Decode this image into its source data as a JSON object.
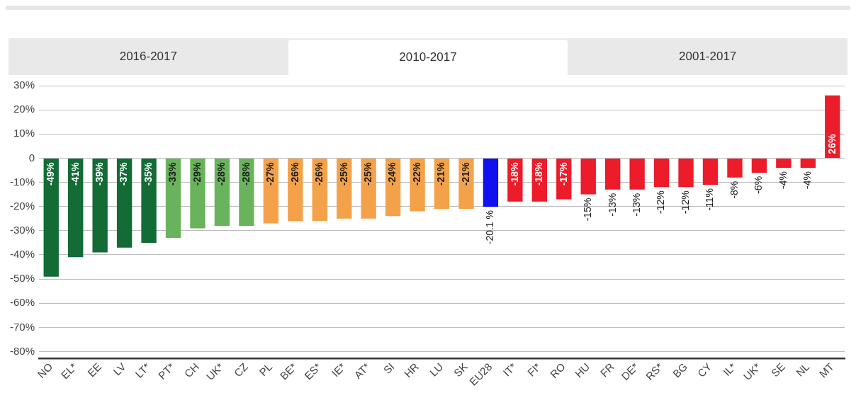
{
  "chart_data": {
    "type": "bar",
    "annotations": [
      "2016-2017",
      "2010-2017",
      "2001-2017"
    ],
    "categories": [
      "NO",
      "EL*",
      "EE",
      "LV",
      "LT*",
      "PT*",
      "CH",
      "UK*",
      "CZ",
      "PL",
      "BE*",
      "ES*",
      "IE*",
      "AT*",
      "SI",
      "HR",
      "LU",
      "SK",
      "EU28",
      "IT*",
      "FI*",
      "RO",
      "HU",
      "FR",
      "DE*",
      "RS*",
      "BG",
      "CY",
      "IL*",
      "UK*",
      "SE",
      "NL",
      "MT"
    ],
    "values": [
      -49,
      -41,
      -39,
      -37,
      -35,
      -33,
      -29,
      -28,
      -28,
      -27,
      -26,
      -26,
      -25,
      -25,
      -24,
      -22,
      -21,
      -21,
      -20.1,
      -18,
      -18,
      -17,
      -15,
      -13,
      -13,
      -12,
      -12,
      -11,
      -8,
      -6,
      -4,
      -4,
      26
    ],
    "value_labels": [
      "-49%",
      "-41%",
      "-39%",
      "-37%",
      "-35%",
      "-33%",
      "-29%",
      "-28%",
      "-28%",
      "-27%",
      "-26%",
      "-26%",
      "-25%",
      "-25%",
      "-24%",
      "-22%",
      "-21%",
      "-21%",
      "-20.1 %",
      "-18%",
      "-18%",
      "-17%",
      "-15%",
      "-13%",
      "-13%",
      "-12%",
      "-12%",
      "-11%",
      "-8%",
      "-6%",
      "-4%",
      "-4%",
      "26%"
    ],
    "colors": [
      "#136b36",
      "#136b36",
      "#136b36",
      "#136b36",
      "#136b36",
      "#6ab35d",
      "#6ab35d",
      "#6ab35d",
      "#6ab35d",
      "#f4a24a",
      "#f4a24a",
      "#f4a24a",
      "#f4a24a",
      "#f4a24a",
      "#f4a24a",
      "#f4a24a",
      "#f4a24a",
      "#f4a24a",
      "#1010f0",
      "#ec1c2a",
      "#ec1c2a",
      "#ec1c2a",
      "#ec1c2a",
      "#ec1c2a",
      "#ec1c2a",
      "#ec1c2a",
      "#ec1c2a",
      "#ec1c2a",
      "#ec1c2a",
      "#ec1c2a",
      "#ec1c2a",
      "#ec1c2a",
      "#ec1c2a"
    ],
    "ylim": [
      -83,
      30
    ],
    "yticks": [
      {
        "value": 30,
        "label": "30%"
      },
      {
        "value": 20,
        "label": "20%"
      },
      {
        "value": 10,
        "label": "10%"
      },
      0,
      {
        "value": -10,
        "label": "-10%"
      },
      {
        "value": -20,
        "label": "-20%"
      },
      {
        "value": -30,
        "label": "-30%"
      },
      {
        "value": -40,
        "label": "-40%"
      },
      {
        "value": -50,
        "label": "-50%"
      },
      {
        "value": -60,
        "label": "-60%"
      },
      {
        "value": -70,
        "label": "-70%"
      },
      {
        "value": -80,
        "label": "-80%"
      }
    ],
    "grid": "y",
    "legend": false
  }
}
